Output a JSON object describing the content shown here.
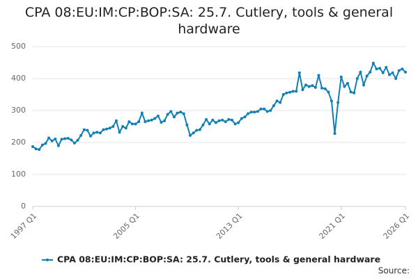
{
  "chart_data": {
    "type": "line",
    "title": "CPA 08:EU:IM:CP:BOP:SA: 25.7. Cutlery, tools & general hardware",
    "categories": [
      "1997 Q1",
      null,
      null,
      null,
      null,
      null,
      null,
      null,
      null,
      null,
      null,
      null,
      null,
      null,
      null,
      null,
      null,
      null,
      null,
      null,
      null,
      null,
      null,
      null,
      null,
      null,
      null,
      null,
      null,
      null,
      null,
      null,
      "2005 Q1",
      null,
      null,
      null,
      null,
      null,
      null,
      null,
      null,
      null,
      null,
      null,
      null,
      null,
      null,
      null,
      null,
      null,
      null,
      null,
      null,
      null,
      null,
      null,
      null,
      null,
      null,
      null,
      null,
      null,
      null,
      null,
      "2013 Q1",
      null,
      null,
      null,
      null,
      null,
      null,
      null,
      null,
      null,
      null,
      null,
      null,
      null,
      null,
      null,
      null,
      null,
      null,
      null,
      null,
      null,
      null,
      null,
      null,
      null,
      null,
      null,
      null,
      null,
      null,
      null,
      "2021 Q1",
      null,
      null,
      null,
      null,
      null,
      null,
      null,
      null,
      null,
      null,
      null,
      null,
      null,
      null,
      null,
      null,
      null,
      null,
      null,
      "2026 Q1"
    ],
    "series": [
      {
        "name": "CPA 08:EU:IM:CP:BOP:SA: 25.7. Cutlery, tools & general hardware",
        "color": "#0f7fb4",
        "values": [
          187,
          180,
          178,
          192,
          197,
          214,
          205,
          211,
          190,
          210,
          212,
          213,
          208,
          198,
          207,
          222,
          240,
          238,
          220,
          230,
          232,
          230,
          240,
          242,
          245,
          250,
          268,
          232,
          250,
          245,
          265,
          258,
          258,
          265,
          292,
          265,
          268,
          270,
          275,
          283,
          263,
          268,
          288,
          297,
          280,
          292,
          295,
          290,
          255,
          222,
          230,
          238,
          240,
          255,
          272,
          258,
          270,
          262,
          268,
          270,
          265,
          272,
          270,
          258,
          262,
          275,
          280,
          290,
          295,
          295,
          297,
          305,
          305,
          297,
          300,
          315,
          330,
          325,
          350,
          355,
          357,
          360,
          360,
          418,
          365,
          380,
          375,
          378,
          372,
          410,
          370,
          368,
          358,
          330,
          228,
          325,
          405,
          375,
          385,
          358,
          355,
          400,
          420,
          380,
          408,
          420,
          448,
          430,
          432,
          418,
          435,
          412,
          418,
          400,
          425,
          430,
          420
        ]
      }
    ],
    "ylim": [
      0,
      500
    ],
    "yticks": [
      0,
      100,
      200,
      300,
      400,
      500
    ],
    "grid": true,
    "source": "Source:"
  }
}
